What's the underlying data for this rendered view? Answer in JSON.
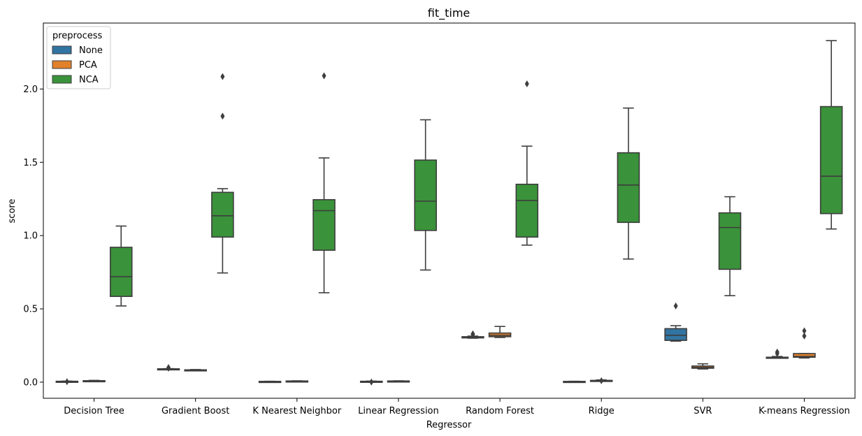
{
  "chart_data": {
    "type": "box",
    "title": "fit_time",
    "xlabel": "Regressor",
    "ylabel": "score",
    "ylim": [
      -0.11,
      2.45
    ],
    "yticks": [
      0.0,
      0.5,
      1.0,
      1.5,
      2.0
    ],
    "yticklabels": [
      "0.0",
      "0.5",
      "1.0",
      "1.5",
      "2.0"
    ],
    "categories": [
      "Decision Tree",
      "Gradient Boost",
      "K Nearest Neighbor",
      "Linear Regression",
      "Random Forest",
      "Ridge",
      "SVR",
      "K-means Regression"
    ],
    "legend": {
      "title": "preprocess",
      "placement": "upper-left",
      "entries": [
        "None",
        "PCA",
        "NCA"
      ]
    },
    "colors": {
      "None": "#3274a1",
      "PCA": "#e1812c",
      "NCA": "#3a923a",
      "line": "#3d3d3d"
    },
    "series": [
      {
        "name": "None",
        "boxes": [
          {
            "min": 0.003,
            "q1": 0.004,
            "median": 0.005,
            "q3": 0.006,
            "max": 0.007,
            "outliers": [
              0.003
            ]
          },
          {
            "min": 0.087,
            "q1": 0.088,
            "median": 0.089,
            "q3": 0.091,
            "max": 0.092,
            "outliers": [
              0.1,
              0.095
            ]
          },
          {
            "min": 0.003,
            "q1": 0.004,
            "median": 0.004,
            "q3": 0.005,
            "max": 0.006,
            "outliers": []
          },
          {
            "min": 0.003,
            "q1": 0.004,
            "median": 0.005,
            "q3": 0.006,
            "max": 0.007,
            "outliers": [
              0.001
            ]
          },
          {
            "min": 0.3,
            "q1": 0.302,
            "median": 0.306,
            "q3": 0.31,
            "max": 0.314,
            "outliers": [
              0.33,
              0.325
            ]
          },
          {
            "min": 0.003,
            "q1": 0.004,
            "median": 0.004,
            "q3": 0.005,
            "max": 0.006,
            "outliers": []
          },
          {
            "min": 0.28,
            "q1": 0.285,
            "median": 0.32,
            "q3": 0.365,
            "max": 0.385,
            "outliers": [
              0.52
            ]
          },
          {
            "min": 0.165,
            "q1": 0.167,
            "median": 0.168,
            "q3": 0.17,
            "max": 0.175,
            "outliers": [
              0.205,
              0.195
            ]
          }
        ]
      },
      {
        "name": "PCA",
        "boxes": [
          {
            "min": 0.005,
            "q1": 0.006,
            "median": 0.008,
            "q3": 0.01,
            "max": 0.012,
            "outliers": []
          },
          {
            "min": 0.08,
            "q1": 0.081,
            "median": 0.082,
            "q3": 0.084,
            "max": 0.086,
            "outliers": []
          },
          {
            "min": 0.005,
            "q1": 0.006,
            "median": 0.007,
            "q3": 0.008,
            "max": 0.009,
            "outliers": []
          },
          {
            "min": 0.005,
            "q1": 0.006,
            "median": 0.007,
            "q3": 0.008,
            "max": 0.009,
            "outliers": []
          },
          {
            "min": 0.305,
            "q1": 0.31,
            "median": 0.32,
            "q3": 0.335,
            "max": 0.38,
            "outliers": []
          },
          {
            "min": 0.006,
            "q1": 0.008,
            "median": 0.01,
            "q3": 0.012,
            "max": 0.015,
            "outliers": [
              0.01
            ]
          },
          {
            "min": 0.09,
            "q1": 0.095,
            "median": 0.1,
            "q3": 0.11,
            "max": 0.125,
            "outliers": []
          },
          {
            "min": 0.165,
            "q1": 0.17,
            "median": 0.175,
            "q3": 0.195,
            "max": 0.195,
            "outliers": [
              0.35,
              0.315
            ]
          }
        ]
      },
      {
        "name": "NCA",
        "boxes": [
          {
            "min": 0.52,
            "q1": 0.585,
            "median": 0.72,
            "q3": 0.92,
            "max": 1.065,
            "outliers": []
          },
          {
            "min": 0.745,
            "q1": 0.99,
            "median": 1.135,
            "q3": 1.295,
            "max": 1.32,
            "outliers": [
              2.085,
              1.815
            ]
          },
          {
            "min": 0.61,
            "q1": 0.9,
            "median": 1.17,
            "q3": 1.245,
            "max": 1.53,
            "outliers": [
              2.09
            ]
          },
          {
            "min": 0.765,
            "q1": 1.035,
            "median": 1.235,
            "q3": 1.515,
            "max": 1.79,
            "outliers": []
          },
          {
            "min": 0.935,
            "q1": 0.99,
            "median": 1.24,
            "q3": 1.35,
            "max": 1.61,
            "outliers": [
              2.035
            ]
          },
          {
            "min": 0.84,
            "q1": 1.09,
            "median": 1.345,
            "q3": 1.565,
            "max": 1.87,
            "outliers": []
          },
          {
            "min": 0.59,
            "q1": 0.77,
            "median": 1.055,
            "q3": 1.155,
            "max": 1.265,
            "outliers": []
          },
          {
            "min": 1.045,
            "q1": 1.15,
            "median": 1.405,
            "q3": 1.88,
            "max": 2.33,
            "outliers": []
          }
        ]
      }
    ]
  }
}
